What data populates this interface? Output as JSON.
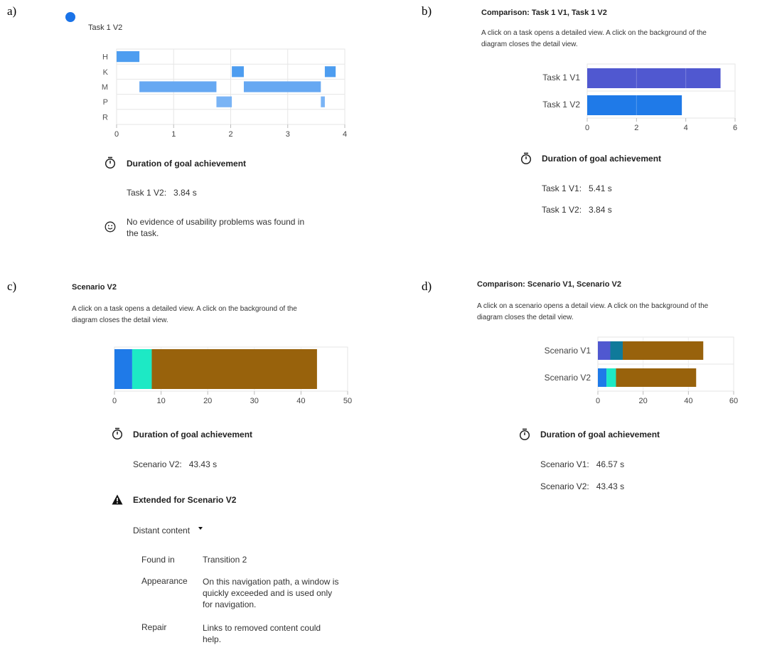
{
  "panels": {
    "a": {
      "label": "a)",
      "legend": "Task 1 V2",
      "metric_title": "Duration of goal achievement",
      "durations": [
        {
          "label": "Task 1 V2:",
          "value": "3.84 s"
        }
      ],
      "note_line1": "No evidence of usability problems was found in",
      "note_line2": "the task."
    },
    "b": {
      "label": "b)",
      "title": "Comparison: Task 1 V1, Task 1 V2",
      "desc_line1": "A click on a task opens a detailed view. A click on the background of the",
      "desc_line2": "diagram closes the detail view.",
      "metric_title": "Duration of goal achievement",
      "durations": [
        {
          "label": "Task 1 V1:",
          "value": "5.41 s"
        },
        {
          "label": "Task 1 V2:",
          "value": "3.84 s"
        }
      ]
    },
    "c": {
      "label": "c)",
      "title": "Scenario V2",
      "desc_line1": "A click on a task opens a detailed view. A click on the background of the",
      "desc_line2": "diagram closes the detail view.",
      "metric_title": "Duration of goal achievement",
      "durations": [
        {
          "label": "Scenario V2:",
          "value": "43.43 s"
        }
      ],
      "warning_title": "Extended for Scenario V2",
      "dropdown_label": "Distant content",
      "details": {
        "found_in_label": "Found in",
        "found_in_value": "Transition 2",
        "appearance_label": "Appearance",
        "appearance_l1": "On this navigation path, a window is",
        "appearance_l2": "quickly exceeded and is used only",
        "appearance_l3": "for navigation.",
        "repair_label": "Repair",
        "repair_l1": "Links to removed content could",
        "repair_l2": "help."
      }
    },
    "d": {
      "label": "d)",
      "title": "Comparison: Scenario V1, Scenario V2",
      "desc_line1": "A click on a scenario opens a detail view. A click on the background of the",
      "desc_line2": "diagram closes the detail view.",
      "metric_title": "Duration of goal achievement",
      "durations": [
        {
          "label": "Scenario V1:",
          "value": "46.57 s"
        },
        {
          "label": "Scenario V2:",
          "value": "43.43 s"
        }
      ]
    }
  },
  "chart_data": [
    {
      "id": "a",
      "type": "bar",
      "orientation": "horizontal-timeline",
      "categories": [
        "H",
        "K",
        "M",
        "P",
        "R"
      ],
      "xlim": [
        0,
        4
      ],
      "xticks": [
        "0",
        "1",
        "2",
        "3",
        "4"
      ],
      "series": [
        {
          "name": "Task 1 V2",
          "color": "#1a73e8",
          "segments": [
            {
              "row": "H",
              "start": 0.0,
              "end": 0.4
            },
            {
              "row": "K",
              "start": 2.02,
              "end": 2.23
            },
            {
              "row": "K",
              "start": 3.65,
              "end": 3.84
            },
            {
              "row": "M",
              "start": 0.4,
              "end": 1.75
            },
            {
              "row": "M",
              "start": 2.23,
              "end": 3.58
            },
            {
              "row": "P",
              "start": 1.75,
              "end": 2.02
            },
            {
              "row": "P",
              "start": 3.58,
              "end": 3.65
            }
          ]
        }
      ],
      "colors": {
        "H": "#4d9df0",
        "K": "#4d9df0",
        "M": "#66a8f2",
        "P": "#7ab4f5",
        "legend": "#1a73e8"
      }
    },
    {
      "id": "b",
      "type": "bar",
      "categories": [
        "Task 1 V1",
        "Task 1 V2"
      ],
      "values": [
        5.41,
        3.84
      ],
      "xlim": [
        0,
        6
      ],
      "xticks": [
        "0",
        "2",
        "4",
        "6"
      ],
      "colors": [
        "#5058d0",
        "#1f7ae8"
      ]
    },
    {
      "id": "c",
      "type": "bar",
      "stacked": true,
      "categories": [
        "Scenario V2"
      ],
      "series": [
        {
          "values": [
            3.8
          ],
          "color": "#1f7ae8"
        },
        {
          "values": [
            4.2
          ],
          "color": "#1de9c5"
        },
        {
          "values": [
            35.43
          ],
          "color": "#98620c"
        }
      ],
      "xlim": [
        0,
        50
      ],
      "xticks": [
        "0",
        "10",
        "20",
        "30",
        "40",
        "50"
      ]
    },
    {
      "id": "d",
      "type": "bar",
      "stacked": true,
      "categories": [
        "Scenario V1",
        "Scenario V2"
      ],
      "series": [
        {
          "values": [
            5.5,
            3.8
          ],
          "colors": [
            "#5058d0",
            "#1f7ae8"
          ]
        },
        {
          "values": [
            5.5,
            4.2
          ],
          "colors": [
            "#0f7a9a",
            "#1de9c5"
          ]
        },
        {
          "values": [
            35.57,
            35.43
          ],
          "colors": [
            "#98620c",
            "#98620c"
          ]
        }
      ],
      "xlim": [
        0,
        60
      ],
      "xticks": [
        "0",
        "20",
        "40",
        "60"
      ]
    }
  ]
}
